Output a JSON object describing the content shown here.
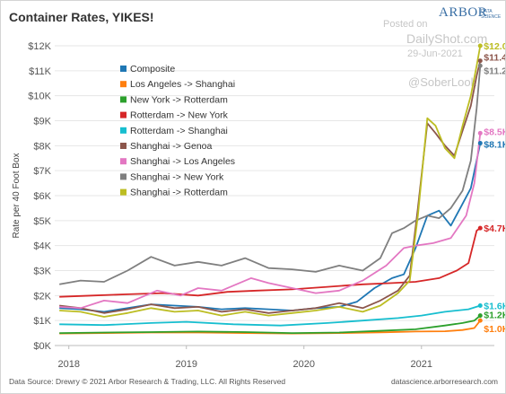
{
  "header": {
    "title": "Container Rates, YIKES!",
    "brand": "ARBOR",
    "brand_sub": "DATA SCIENCE"
  },
  "watermark": {
    "posted": "Posted on",
    "site": "DailyShot.com",
    "date": "29-Jun-2021",
    "handle": "@SoberLook"
  },
  "footer": {
    "source": "Data Source: Drewry © 2021 Arbor Research & Trading, LLC. All Rights Reserved",
    "site": "datascience.arborresearch.com"
  },
  "chart_data": {
    "type": "line",
    "title": "Container Rates, YIKES!",
    "ylabel": "Rate per 40 Foot Box",
    "xlabel": "",
    "ylim": [
      0,
      12000
    ],
    "xlim": [
      2017.88,
      2021.62
    ],
    "y_ticks": [
      {
        "v": 0,
        "label": "$0K"
      },
      {
        "v": 1000,
        "label": "$1K"
      },
      {
        "v": 2000,
        "label": "$2K"
      },
      {
        "v": 3000,
        "label": "$3K"
      },
      {
        "v": 4000,
        "label": "$4K"
      },
      {
        "v": 5000,
        "label": "$5K"
      },
      {
        "v": 6000,
        "label": "$6K"
      },
      {
        "v": 7000,
        "label": "$7K"
      },
      {
        "v": 8000,
        "label": "$8K"
      },
      {
        "v": 9000,
        "label": "$9K"
      },
      {
        "v": 10000,
        "label": "$10K"
      },
      {
        "v": 11000,
        "label": "$11K"
      },
      {
        "v": 12000,
        "label": "$12K"
      }
    ],
    "x_ticks": [
      {
        "v": 2018,
        "label": "2018"
      },
      {
        "v": 2019,
        "label": "2019"
      },
      {
        "v": 2020,
        "label": "2020"
      },
      {
        "v": 2021,
        "label": "2021"
      }
    ],
    "grid": true,
    "legend_position": "top-left",
    "series": [
      {
        "name": "Composite",
        "color": "#1f77b4",
        "end_label": "$8.1K",
        "points": [
          [
            2017.92,
            1500
          ],
          [
            2018.1,
            1450
          ],
          [
            2018.3,
            1350
          ],
          [
            2018.5,
            1500
          ],
          [
            2018.7,
            1650
          ],
          [
            2018.9,
            1600
          ],
          [
            2019.1,
            1550
          ],
          [
            2019.3,
            1450
          ],
          [
            2019.5,
            1500
          ],
          [
            2019.7,
            1450
          ],
          [
            2019.9,
            1400
          ],
          [
            2020.1,
            1500
          ],
          [
            2020.3,
            1550
          ],
          [
            2020.45,
            1750
          ],
          [
            2020.6,
            2300
          ],
          [
            2020.75,
            2700
          ],
          [
            2020.85,
            2850
          ],
          [
            2020.95,
            3900
          ],
          [
            2021.05,
            5200
          ],
          [
            2021.15,
            5400
          ],
          [
            2021.25,
            4800
          ],
          [
            2021.33,
            5500
          ],
          [
            2021.42,
            6300
          ],
          [
            2021.5,
            8100
          ]
        ]
      },
      {
        "name": "Los Angeles -> Shanghai",
        "color": "#ff7f0e",
        "end_label": "$1.0K",
        "points": [
          [
            2017.92,
            480
          ],
          [
            2018.3,
            500
          ],
          [
            2018.7,
            520
          ],
          [
            2019.1,
            520
          ],
          [
            2019.5,
            500
          ],
          [
            2019.9,
            480
          ],
          [
            2020.3,
            500
          ],
          [
            2020.7,
            530
          ],
          [
            2020.95,
            560
          ],
          [
            2021.2,
            570
          ],
          [
            2021.35,
            620
          ],
          [
            2021.45,
            700
          ],
          [
            2021.5,
            1000
          ]
        ]
      },
      {
        "name": "New York -> Rotterdam",
        "color": "#2ca02c",
        "end_label": "$1.2K",
        "points": [
          [
            2017.92,
            500
          ],
          [
            2018.3,
            520
          ],
          [
            2018.7,
            540
          ],
          [
            2019.1,
            560
          ],
          [
            2019.5,
            540
          ],
          [
            2019.9,
            500
          ],
          [
            2020.3,
            520
          ],
          [
            2020.7,
            600
          ],
          [
            2020.95,
            650
          ],
          [
            2021.2,
            800
          ],
          [
            2021.35,
            900
          ],
          [
            2021.45,
            1000
          ],
          [
            2021.5,
            1200
          ]
        ]
      },
      {
        "name": "Rotterdam -> New York",
        "color": "#d62728",
        "end_label": "$4.7K",
        "points": [
          [
            2017.92,
            1950
          ],
          [
            2018.2,
            2000
          ],
          [
            2018.5,
            2050
          ],
          [
            2018.8,
            2100
          ],
          [
            2019.1,
            2000
          ],
          [
            2019.35,
            2150
          ],
          [
            2019.6,
            2200
          ],
          [
            2019.9,
            2250
          ],
          [
            2020.2,
            2350
          ],
          [
            2020.5,
            2450
          ],
          [
            2020.75,
            2500
          ],
          [
            2020.95,
            2550
          ],
          [
            2021.15,
            2700
          ],
          [
            2021.3,
            3000
          ],
          [
            2021.4,
            3300
          ],
          [
            2021.47,
            4600
          ],
          [
            2021.5,
            4700
          ]
        ]
      },
      {
        "name": "Rotterdam -> Shanghai",
        "color": "#17becf",
        "end_label": "$1.6K",
        "points": [
          [
            2017.92,
            850
          ],
          [
            2018.3,
            820
          ],
          [
            2018.7,
            900
          ],
          [
            2019.0,
            950
          ],
          [
            2019.4,
            850
          ],
          [
            2019.8,
            800
          ],
          [
            2020.2,
            900
          ],
          [
            2020.5,
            1000
          ],
          [
            2020.8,
            1100
          ],
          [
            2021.0,
            1200
          ],
          [
            2021.2,
            1350
          ],
          [
            2021.4,
            1450
          ],
          [
            2021.5,
            1600
          ]
        ]
      },
      {
        "name": "Shanghai -> Genoa",
        "color": "#8c564b",
        "end_label": "$11.4K",
        "points": [
          [
            2017.92,
            1600
          ],
          [
            2018.1,
            1500
          ],
          [
            2018.3,
            1300
          ],
          [
            2018.5,
            1450
          ],
          [
            2018.7,
            1650
          ],
          [
            2018.9,
            1500
          ],
          [
            2019.1,
            1550
          ],
          [
            2019.3,
            1350
          ],
          [
            2019.5,
            1450
          ],
          [
            2019.7,
            1300
          ],
          [
            2019.9,
            1400
          ],
          [
            2020.1,
            1500
          ],
          [
            2020.3,
            1700
          ],
          [
            2020.5,
            1500
          ],
          [
            2020.65,
            1800
          ],
          [
            2020.8,
            2200
          ],
          [
            2020.9,
            2800
          ],
          [
            2020.97,
            5500
          ],
          [
            2021.05,
            8900
          ],
          [
            2021.12,
            8500
          ],
          [
            2021.2,
            8000
          ],
          [
            2021.28,
            7600
          ],
          [
            2021.35,
            8600
          ],
          [
            2021.42,
            9600
          ],
          [
            2021.47,
            10800
          ],
          [
            2021.5,
            11400
          ]
        ]
      },
      {
        "name": "Shanghai -> Los Angeles",
        "color": "#e377c2",
        "end_label": "$8.5K",
        "points": [
          [
            2017.92,
            1550
          ],
          [
            2018.1,
            1500
          ],
          [
            2018.3,
            1800
          ],
          [
            2018.5,
            1700
          ],
          [
            2018.75,
            2200
          ],
          [
            2018.95,
            2000
          ],
          [
            2019.1,
            2300
          ],
          [
            2019.3,
            2200
          ],
          [
            2019.55,
            2700
          ],
          [
            2019.7,
            2500
          ],
          [
            2019.9,
            2300
          ],
          [
            2020.1,
            2100
          ],
          [
            2020.3,
            2200
          ],
          [
            2020.5,
            2600
          ],
          [
            2020.7,
            3200
          ],
          [
            2020.85,
            3900
          ],
          [
            2020.95,
            4000
          ],
          [
            2021.1,
            4100
          ],
          [
            2021.25,
            4300
          ],
          [
            2021.38,
            5200
          ],
          [
            2021.45,
            6500
          ],
          [
            2021.5,
            8500
          ]
        ]
      },
      {
        "name": "Shanghai -> New York",
        "color": "#7f7f7f",
        "end_label": "$11.2K",
        "points": [
          [
            2017.92,
            2450
          ],
          [
            2018.1,
            2600
          ],
          [
            2018.3,
            2550
          ],
          [
            2018.5,
            3000
          ],
          [
            2018.7,
            3550
          ],
          [
            2018.9,
            3200
          ],
          [
            2019.1,
            3350
          ],
          [
            2019.3,
            3200
          ],
          [
            2019.5,
            3500
          ],
          [
            2019.7,
            3100
          ],
          [
            2019.9,
            3050
          ],
          [
            2020.1,
            2950
          ],
          [
            2020.3,
            3200
          ],
          [
            2020.5,
            3000
          ],
          [
            2020.65,
            3500
          ],
          [
            2020.75,
            4500
          ],
          [
            2020.85,
            4700
          ],
          [
            2020.95,
            5000
          ],
          [
            2021.05,
            5200
          ],
          [
            2021.15,
            5100
          ],
          [
            2021.25,
            5500
          ],
          [
            2021.35,
            6200
          ],
          [
            2021.42,
            7400
          ],
          [
            2021.47,
            9500
          ],
          [
            2021.5,
            11200
          ]
        ]
      },
      {
        "name": "Shanghai -> Rotterdam",
        "color": "#bcbd22",
        "end_label": "$12.0K",
        "points": [
          [
            2017.92,
            1400
          ],
          [
            2018.1,
            1350
          ],
          [
            2018.3,
            1150
          ],
          [
            2018.5,
            1300
          ],
          [
            2018.7,
            1500
          ],
          [
            2018.9,
            1350
          ],
          [
            2019.1,
            1400
          ],
          [
            2019.3,
            1200
          ],
          [
            2019.5,
            1350
          ],
          [
            2019.7,
            1200
          ],
          [
            2019.9,
            1300
          ],
          [
            2020.1,
            1400
          ],
          [
            2020.3,
            1550
          ],
          [
            2020.5,
            1350
          ],
          [
            2020.65,
            1600
          ],
          [
            2020.8,
            2100
          ],
          [
            2020.9,
            2600
          ],
          [
            2020.97,
            5200
          ],
          [
            2021.05,
            9100
          ],
          [
            2021.12,
            8800
          ],
          [
            2021.2,
            7900
          ],
          [
            2021.28,
            7500
          ],
          [
            2021.35,
            8800
          ],
          [
            2021.42,
            10000
          ],
          [
            2021.47,
            11200
          ],
          [
            2021.5,
            12000
          ]
        ]
      }
    ]
  }
}
